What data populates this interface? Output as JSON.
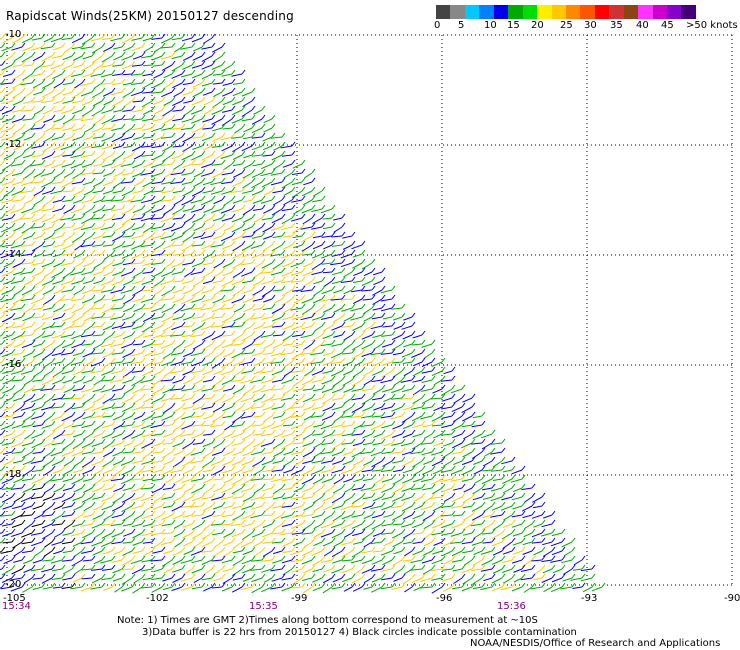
{
  "title": "Rapidscat Winds(25KM) 20150127 descending",
  "colorbar": {
    "colors": [
      "#444444",
      "#888888",
      "#00c8ff",
      "#0080ff",
      "#0000ee",
      "#00aa00",
      "#00dd00",
      "#ffee00",
      "#ffc800",
      "#ff8800",
      "#ff5500",
      "#ff0000",
      "#cc3333",
      "#8b4513",
      "#ff33ff",
      "#cc00cc",
      "#8800cc",
      "#440077"
    ],
    "labels": [
      "0",
      "5",
      "10",
      "15",
      "20",
      "25",
      "30",
      "35",
      "40",
      "45",
      ">50 knots"
    ]
  },
  "lat_labels": [
    "-10",
    "-12",
    "-14",
    "-16",
    "-18",
    "-20"
  ],
  "lon_labels": [
    "-105",
    "-102",
    "-99",
    "-96",
    "-93",
    "-90"
  ],
  "time_labels": [
    "15:34",
    "15:35",
    "15:36"
  ],
  "notes": {
    "line1": "Note: 1) Times are GMT 2)Times along bottom correspond to measurement at ~10S",
    "line2": "3)Data buffer is 22 hrs from 20150127 4) Black circles indicate possible contamination",
    "credit": "NOAA/NESDIS/Office of Research and Applications"
  }
}
